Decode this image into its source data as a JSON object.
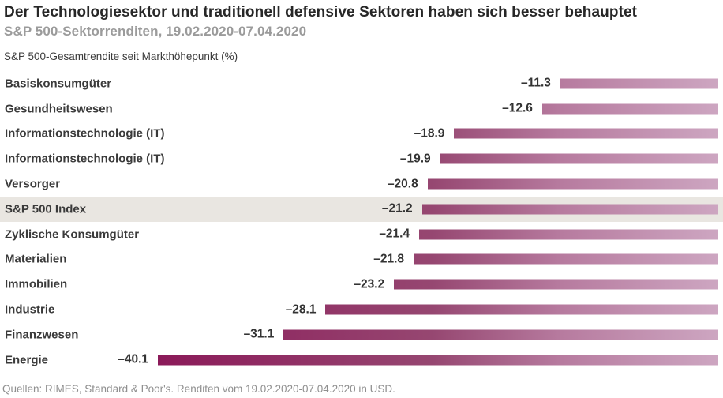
{
  "header": {
    "title": "Der Technologiesektor und traditionell defensive Sektoren haben sich besser behauptet",
    "subtitle": "S&P 500-Sektorrenditen, 19.02.2020-07.04.2020"
  },
  "chart_data": {
    "type": "bar",
    "orientation": "horizontal",
    "axis_label": "S&P 500-Gesamtrendite seit Markthöhepunkt (%)",
    "categories": [
      "Basiskonsumgüter",
      "Gesundheitswesen",
      "Informationstechnologie (IT)",
      "Informationstechnologie (IT)",
      "Versorger",
      "S&P 500 Index",
      "Zyklische Konsumgüter",
      "Materialien",
      "Immobilien",
      "Industrie",
      "Finanzwesen",
      "Energie"
    ],
    "values": [
      -11.3,
      -12.6,
      -18.9,
      -19.9,
      -20.8,
      -21.2,
      -21.4,
      -21.8,
      -23.2,
      -28.1,
      -31.1,
      -40.1
    ],
    "value_labels": [
      "–11.3",
      "–12.6",
      "–18.9",
      "–19.9",
      "–20.8",
      "–21.2",
      "–21.4",
      "–21.8",
      "–23.2",
      "–28.1",
      "–31.1",
      "–40.1"
    ],
    "xlim": [
      -40.1,
      0
    ],
    "highlight_index": 5,
    "highlight_category": "S&P 500 Index",
    "highlight_row_color": "#e9e6e1",
    "grid": false,
    "legend": false,
    "bar_gradient": [
      {
        "pos": "0%",
        "color": "#8b1a59"
      },
      {
        "pos": "49%",
        "color": "#964771"
      },
      {
        "pos": "72%",
        "color": "#b77b9f"
      },
      {
        "pos": "100%",
        "color": "#cda6c1"
      }
    ]
  },
  "footer": {
    "source": "Quellen: RIMES, Standard & Poor's. Renditen vom 19.02.2020-07.04.2020 in USD."
  }
}
